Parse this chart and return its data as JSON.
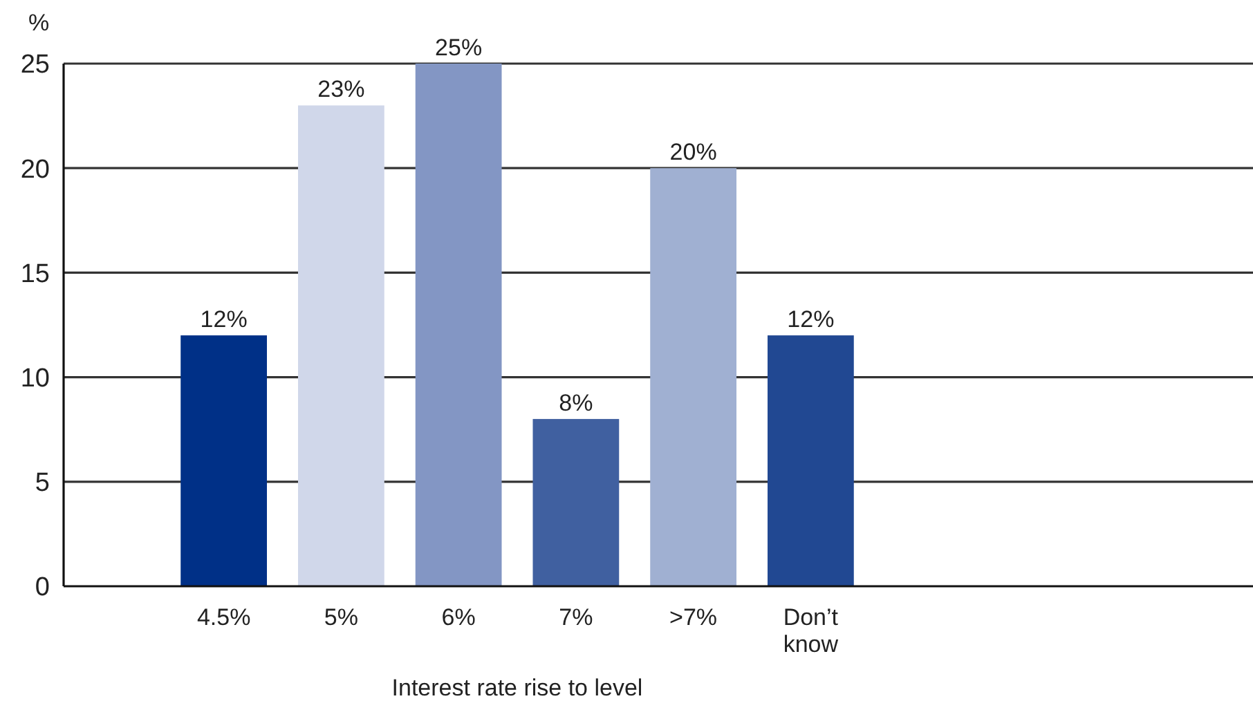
{
  "chart_data": {
    "type": "bar",
    "xlabel": "Interest rate rise to level",
    "ylabel": "%",
    "categories": [
      "4.5%",
      "5%",
      "6%",
      "7%",
      ">7%",
      "Don’t know"
    ],
    "values": [
      12,
      23,
      25,
      8,
      20,
      12
    ],
    "colors": [
      "#003087",
      "#d0d7ea",
      "#8396c4",
      "#4060a0",
      "#a0b0d2",
      "#214892"
    ],
    "value_labels": [
      "12%",
      "23%",
      "25%",
      "8%",
      "20%",
      "12%"
    ],
    "ylim": [
      0,
      25
    ],
    "yticks": [
      0,
      5,
      10,
      15,
      20,
      25
    ],
    "grid": "y"
  }
}
